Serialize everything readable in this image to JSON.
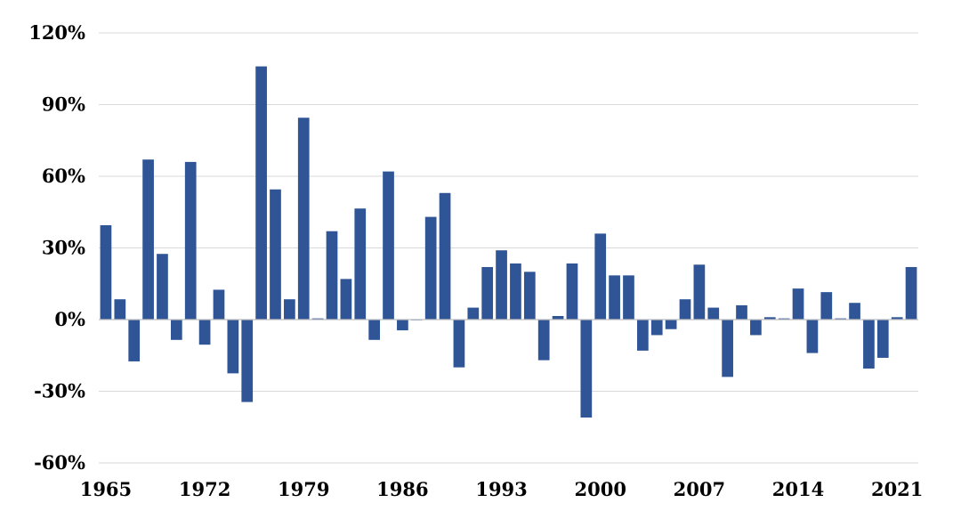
{
  "chart_data": {
    "type": "bar",
    "title": "",
    "xlabel": "",
    "ylabel": "",
    "ylim": [
      -60,
      120
    ],
    "yticks": [
      -60,
      -30,
      0,
      30,
      60,
      90,
      120
    ],
    "ytick_labels": [
      "-60%",
      "-30%",
      "0%",
      "30%",
      "60%",
      "90%",
      "120%"
    ],
    "x_tick_labels": [
      "1965",
      "1972",
      "1979",
      "1986",
      "1993",
      "2000",
      "2007",
      "2014",
      "2021"
    ],
    "x_tick_years": [
      1965,
      1972,
      1979,
      1986,
      1993,
      2000,
      2007,
      2014,
      2021
    ],
    "grid": true,
    "color": "#2f5597",
    "categories": [
      1965,
      1966,
      1967,
      1968,
      1969,
      1970,
      1971,
      1972,
      1973,
      1974,
      1975,
      1976,
      1977,
      1978,
      1979,
      1980,
      1981,
      1982,
      1983,
      1984,
      1985,
      1986,
      1987,
      1988,
      1989,
      1990,
      1991,
      1992,
      1993,
      1994,
      1995,
      1996,
      1997,
      1998,
      1999,
      2000,
      2001,
      2002,
      2003,
      2004,
      2005,
      2006,
      2007,
      2008,
      2009,
      2010,
      2011,
      2012,
      2013,
      2014,
      2015,
      2016,
      2017,
      2018,
      2019,
      2020,
      2021,
      2022
    ],
    "values": [
      39.5,
      8.5,
      -17.5,
      67,
      27.5,
      -8.5,
      66,
      -10.5,
      12.5,
      -22.5,
      -34.5,
      106,
      54.5,
      8.5,
      84.5,
      0.5,
      37,
      17,
      46.5,
      -8.5,
      62,
      -4.5,
      0,
      43,
      53,
      -20,
      5,
      22,
      29,
      23.5,
      20,
      -17,
      1.5,
      23.5,
      -41,
      36,
      18.5,
      18.5,
      -13,
      -6.5,
      -4,
      8.5,
      23,
      5,
      -24,
      6,
      -6.5,
      1,
      0.5,
      13,
      -14,
      11.5,
      0.5,
      7,
      -20.5,
      -16,
      1,
      22
    ]
  }
}
